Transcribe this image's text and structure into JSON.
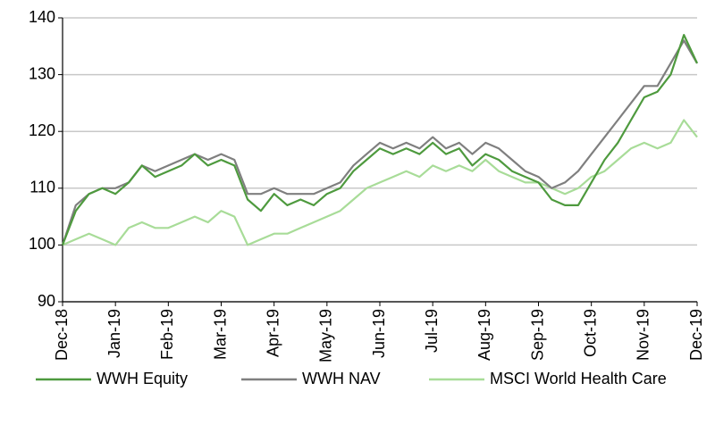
{
  "chart_data": {
    "type": "line",
    "x": [
      0,
      0.25,
      0.5,
      0.75,
      1,
      1.25,
      1.5,
      1.75,
      2,
      2.25,
      2.5,
      2.75,
      3,
      3.25,
      3.5,
      3.75,
      4,
      4.25,
      4.5,
      4.75,
      5,
      5.25,
      5.5,
      5.75,
      6,
      6.25,
      6.5,
      6.75,
      7,
      7.25,
      7.5,
      7.75,
      8,
      8.25,
      8.5,
      8.75,
      9,
      9.25,
      9.5,
      9.75,
      10,
      10.25,
      10.5,
      10.75,
      11,
      11.25,
      11.5,
      11.75,
      12
    ],
    "series": [
      {
        "name": "WWH Equity",
        "color": "#4e9a3e",
        "values": [
          100,
          106,
          109,
          110,
          109,
          111,
          114,
          112,
          113,
          114,
          116,
          114,
          115,
          114,
          108,
          106,
          109,
          107,
          108,
          107,
          109,
          110,
          113,
          115,
          117,
          116,
          117,
          116,
          118,
          116,
          117,
          114,
          116,
          115,
          113,
          112,
          111,
          108,
          107,
          107,
          111,
          115,
          118,
          122,
          126,
          127,
          130,
          137,
          132
        ]
      },
      {
        "name": "WWH NAV",
        "color": "#7f7f7f",
        "values": [
          100,
          107,
          109,
          110,
          110,
          111,
          114,
          113,
          114,
          115,
          116,
          115,
          116,
          115,
          109,
          109,
          110,
          109,
          109,
          109,
          110,
          111,
          114,
          116,
          118,
          117,
          118,
          117,
          119,
          117,
          118,
          116,
          118,
          117,
          115,
          113,
          112,
          110,
          111,
          113,
          116,
          119,
          122,
          125,
          128,
          128,
          132,
          136,
          132
        ]
      },
      {
        "name": "MSCI World Health Care",
        "color": "#a8dc98",
        "values": [
          100,
          101,
          102,
          101,
          100,
          103,
          104,
          103,
          103,
          104,
          105,
          104,
          106,
          105,
          100,
          101,
          102,
          102,
          103,
          104,
          105,
          106,
          108,
          110,
          111,
          112,
          113,
          112,
          114,
          113,
          114,
          113,
          115,
          113,
          112,
          111,
          111,
          110,
          109,
          110,
          112,
          113,
          115,
          117,
          118,
          117,
          118,
          122,
          119
        ]
      }
    ],
    "xlim": [
      0,
      12
    ],
    "xticks": [
      {
        "value": 0,
        "label": "Dec-18"
      },
      {
        "value": 1,
        "label": "Jan-19"
      },
      {
        "value": 2,
        "label": "Feb-19"
      },
      {
        "value": 3,
        "label": "Mar-19"
      },
      {
        "value": 4,
        "label": "Apr-19"
      },
      {
        "value": 5,
        "label": "May-19"
      },
      {
        "value": 6,
        "label": "Jun-19"
      },
      {
        "value": 7,
        "label": "Jul-19"
      },
      {
        "value": 8,
        "label": "Aug-19"
      },
      {
        "value": 9,
        "label": "Sep-19"
      },
      {
        "value": 10,
        "label": "Oct-19"
      },
      {
        "value": 11,
        "label": "Nov-19"
      },
      {
        "value": 12,
        "label": "Dec-19"
      }
    ],
    "ylim": [
      90,
      140
    ],
    "yticks": [
      90,
      100,
      110,
      120,
      130,
      140
    ],
    "grid": true,
    "legend": "bottom"
  }
}
